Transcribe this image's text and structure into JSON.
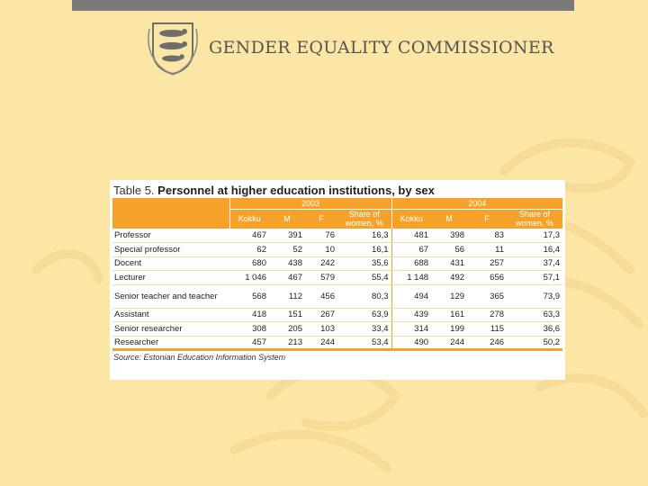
{
  "header": {
    "organization": "GENDER EQUALITY COMMISSIONER",
    "logo_icon": "estonian-three-lions-coat-of-arms"
  },
  "colors": {
    "background": "#fbe6a6",
    "table_header": "#f6a12a",
    "top_bar": "#7a7a7a"
  },
  "table": {
    "caption_prefix": "Table 5.",
    "caption_title": "Personnel at higher education institutions, by sex",
    "years": [
      "2003",
      "2004"
    ],
    "columns": [
      "Kokku",
      "M",
      "F",
      "Share of women, %",
      "Kokku",
      "M",
      "F",
      "Share of women, %"
    ],
    "rows": [
      {
        "label": "Professor",
        "values": [
          "467",
          "391",
          "76",
          "16,3",
          "481",
          "398",
          "83",
          "17,3"
        ]
      },
      {
        "label": "Special professor",
        "values": [
          "62",
          "52",
          "10",
          "16,1",
          "67",
          "56",
          "11",
          "16,4"
        ]
      },
      {
        "label": "Docent",
        "values": [
          "680",
          "438",
          "242",
          "35,6",
          "688",
          "431",
          "257",
          "37,4"
        ]
      },
      {
        "label": "Lecturer",
        "values": [
          "1 046",
          "467",
          "579",
          "55,4",
          "1 148",
          "492",
          "656",
          "57,1"
        ]
      },
      {
        "label": "Senior teacher and teacher",
        "values": [
          "568",
          "112",
          "456",
          "80,3",
          "494",
          "129",
          "365",
          "73,9"
        ]
      },
      {
        "label": "Assistant",
        "values": [
          "418",
          "151",
          "267",
          "63,9",
          "439",
          "161",
          "278",
          "63,3"
        ]
      },
      {
        "label": "Senior researcher",
        "values": [
          "308",
          "205",
          "103",
          "33,4",
          "314",
          "199",
          "115",
          "36,6"
        ]
      },
      {
        "label": "Researcher",
        "values": [
          "457",
          "213",
          "244",
          "53,4",
          "490",
          "244",
          "246",
          "50,2"
        ]
      }
    ],
    "source": "Source: Estonian Education Information System"
  }
}
